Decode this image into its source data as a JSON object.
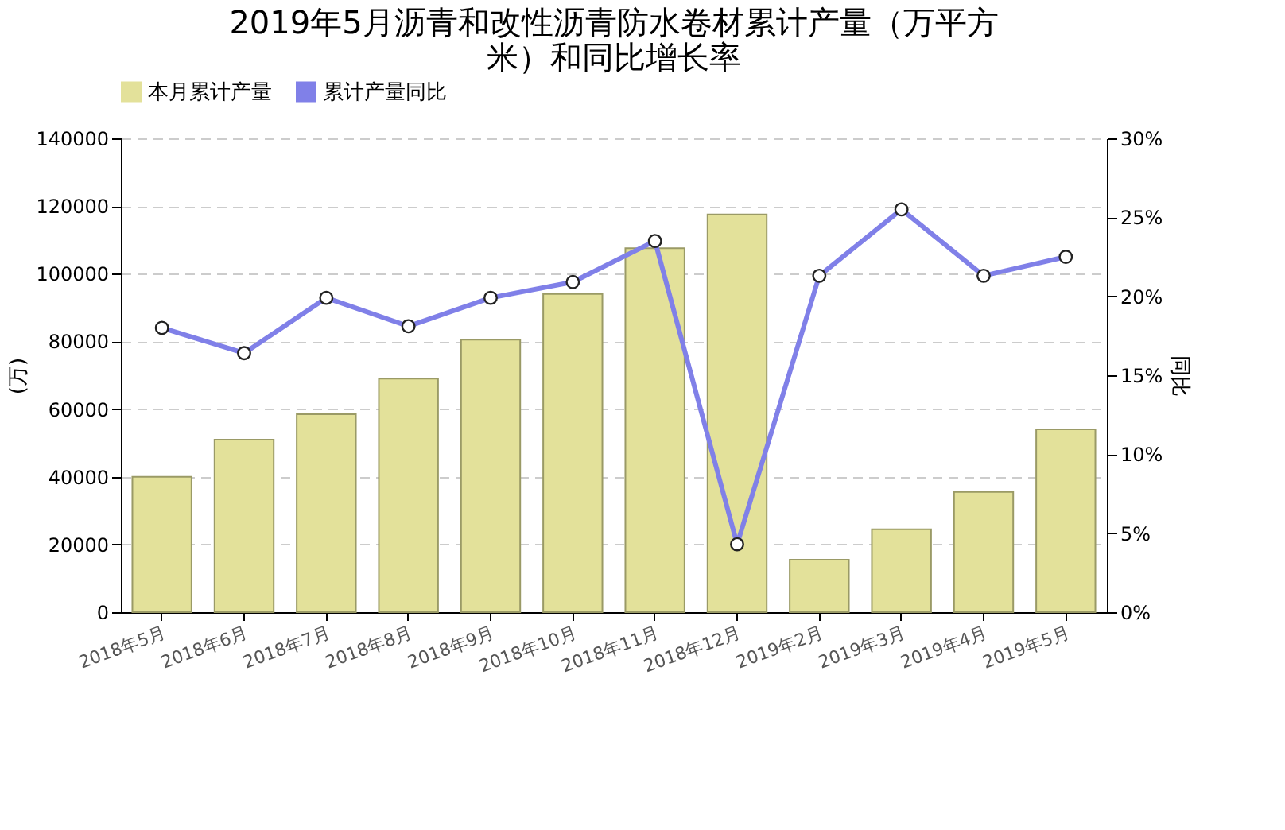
{
  "chart_data": {
    "type": "bar",
    "title": [
      "2019年5月沥青和改性沥青防水卷材累计产量（万平方",
      "米）和同比增长率"
    ],
    "categories": [
      "2018年5月",
      "2018年6月",
      "2018年7月",
      "2018年8月",
      "2018年9月",
      "2018年10月",
      "2018年11月",
      "2018年12月",
      "2019年2月",
      "2019年3月",
      "2019年4月",
      "2019年5月"
    ],
    "series": [
      {
        "name": "本月累计产量",
        "color": "#e3e19a",
        "values": [
          40000,
          51000,
          58500,
          69000,
          80500,
          94000,
          107500,
          117500,
          15500,
          24500,
          35500,
          54000
        ]
      },
      {
        "name": "累计产量同比",
        "type": "line",
        "axis": "y2",
        "color": "#8080e8",
        "marker": "circle",
        "values": [
          18.0,
          16.4,
          19.9,
          18.1,
          19.9,
          20.9,
          23.5,
          4.3,
          21.3,
          25.5,
          21.3,
          22.5
        ]
      }
    ],
    "ylabel": "(万)",
    "y2label": "同比",
    "ylim": [
      0,
      140000
    ],
    "yticks": [
      0,
      20000,
      40000,
      60000,
      80000,
      100000,
      120000,
      140000
    ],
    "y2lim": [
      0,
      30
    ],
    "y2ticks": [
      {
        "value": 0,
        "label": "0%"
      },
      {
        "value": 5,
        "label": "5%"
      },
      {
        "value": 10,
        "label": "10%"
      },
      {
        "value": 15,
        "label": "15%"
      },
      {
        "value": 20,
        "label": "20%"
      },
      {
        "value": 25,
        "label": "25%"
      },
      {
        "value": 30,
        "label": "30%"
      }
    ],
    "grid": "y",
    "legend": "top"
  }
}
